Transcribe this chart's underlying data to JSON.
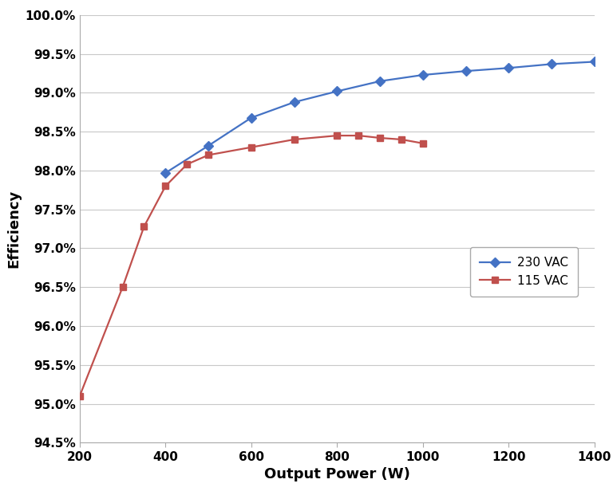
{
  "title": "",
  "xlabel": "Output Power (W)",
  "ylabel": "Efficiency",
  "xlim": [
    200,
    1400
  ],
  "ylim": [
    0.945,
    1.0
  ],
  "yticks": [
    0.945,
    0.95,
    0.955,
    0.96,
    0.965,
    0.97,
    0.975,
    0.98,
    0.985,
    0.99,
    0.995,
    1.0
  ],
  "xticks": [
    200,
    400,
    600,
    800,
    1000,
    1200,
    1400
  ],
  "series_230": {
    "label": "230 VAC",
    "color": "#4472C4",
    "marker": "D",
    "x": [
      400,
      500,
      600,
      700,
      800,
      900,
      1000,
      1100,
      1200,
      1300,
      1400
    ],
    "y": [
      0.9797,
      0.9832,
      0.9868,
      0.9888,
      0.9902,
      0.9915,
      0.9923,
      0.9928,
      0.9932,
      0.9937,
      0.994
    ]
  },
  "series_115": {
    "label": "115 VAC",
    "color": "#C0504D",
    "marker": "s",
    "x": [
      200,
      300,
      350,
      400,
      450,
      500,
      600,
      700,
      800,
      850,
      900,
      950,
      1000
    ],
    "y": [
      0.951,
      0.965,
      0.9728,
      0.978,
      0.9808,
      0.982,
      0.983,
      0.984,
      0.9845,
      0.9845,
      0.9842,
      0.984,
      0.9835
    ]
  },
  "background_color": "#ffffff",
  "grid_color": "#c8c8c8",
  "line_width": 1.6,
  "marker_size": 6,
  "xlabel_fontsize": 13,
  "ylabel_fontsize": 13,
  "tick_fontsize": 11,
  "legend_fontsize": 11
}
